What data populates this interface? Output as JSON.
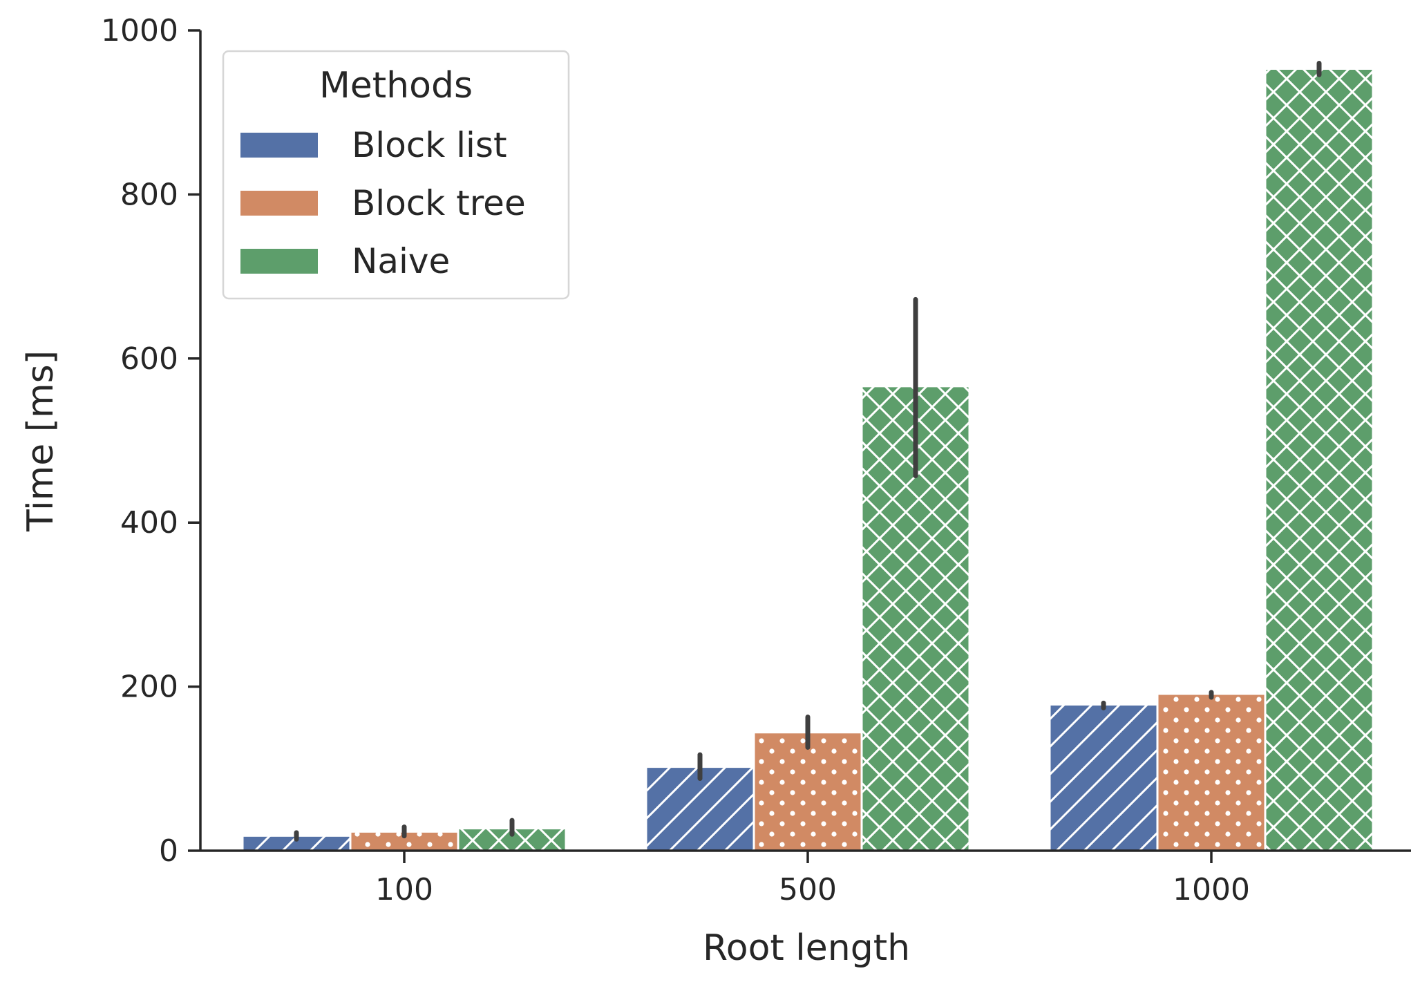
{
  "chart_data": {
    "type": "bar",
    "title": "",
    "xlabel": "Root length",
    "ylabel": "Time [ms]",
    "categories": [
      "100",
      "500",
      "1000"
    ],
    "ylim": [
      0,
      1000
    ],
    "yticks": [
      0,
      200,
      400,
      600,
      800,
      1000
    ],
    "grid": false,
    "legend": {
      "title": "Methods",
      "position": "top-left"
    },
    "series": [
      {
        "name": "Block list",
        "color": "#5471a6",
        "hatch": "diagonal",
        "values": [
          17,
          101,
          177
        ],
        "error_low": [
          14,
          88,
          174
        ],
        "error_high": [
          22,
          117,
          180
        ]
      },
      {
        "name": "Block tree",
        "color": "#d18a64",
        "hatch": "dots",
        "values": [
          22,
          143,
          190
        ],
        "error_low": [
          18,
          126,
          187
        ],
        "error_high": [
          29,
          163,
          193
        ]
      },
      {
        "name": "Naive",
        "color": "#5d9e6b",
        "hatch": "crosshatch",
        "values": [
          26,
          565,
          952
        ],
        "error_low": [
          20,
          457,
          946
        ],
        "error_high": [
          37,
          672,
          960
        ]
      }
    ]
  }
}
